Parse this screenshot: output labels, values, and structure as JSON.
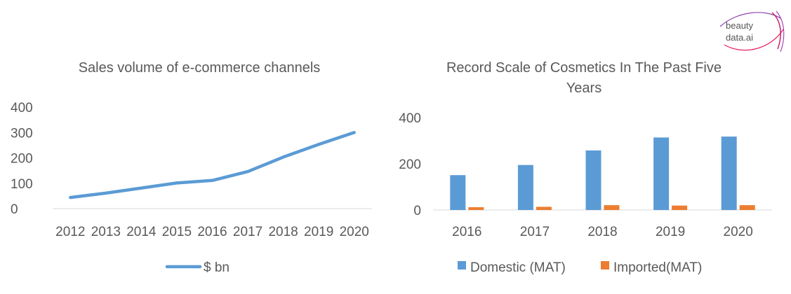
{
  "logo": {
    "line1": "beauty",
    "line2": "data.ai"
  },
  "chart_data": [
    {
      "type": "line",
      "title": "Sales volume of e-commerce channels",
      "x": [
        "2012",
        "2013",
        "2014",
        "2015",
        "2016",
        "2017",
        "2018",
        "2019",
        "2020"
      ],
      "series": [
        {
          "name": "$ bn",
          "values": [
            44,
            61,
            81,
            101,
            111,
            146,
            203,
            253,
            300
          ],
          "color": "#5B9BD5"
        }
      ],
      "yticks": [
        "0",
        "100",
        "200",
        "300",
        "400"
      ],
      "ylim": [
        0,
        400
      ],
      "grid": false,
      "legend": "bottom"
    },
    {
      "type": "bar",
      "title": "Record Scale of Cosmetics In The Past Five Years",
      "title_lines": [
        "Record Scale of Cosmetics In The Past Five",
        "Years"
      ],
      "categories": [
        "2016",
        "2017",
        "2018",
        "2019",
        "2020"
      ],
      "series": [
        {
          "name": "Domestic (MAT)",
          "values": [
            151,
            195,
            258,
            314,
            318
          ],
          "color": "#5B9BD5"
        },
        {
          "name": "Imported(MAT)",
          "values": [
            12,
            14,
            21,
            19,
            21
          ],
          "color": "#ED7D31"
        }
      ],
      "yticks": [
        "0",
        "200",
        "400"
      ],
      "ylim": [
        0,
        400
      ],
      "grid": false,
      "legend": "bottom"
    }
  ]
}
